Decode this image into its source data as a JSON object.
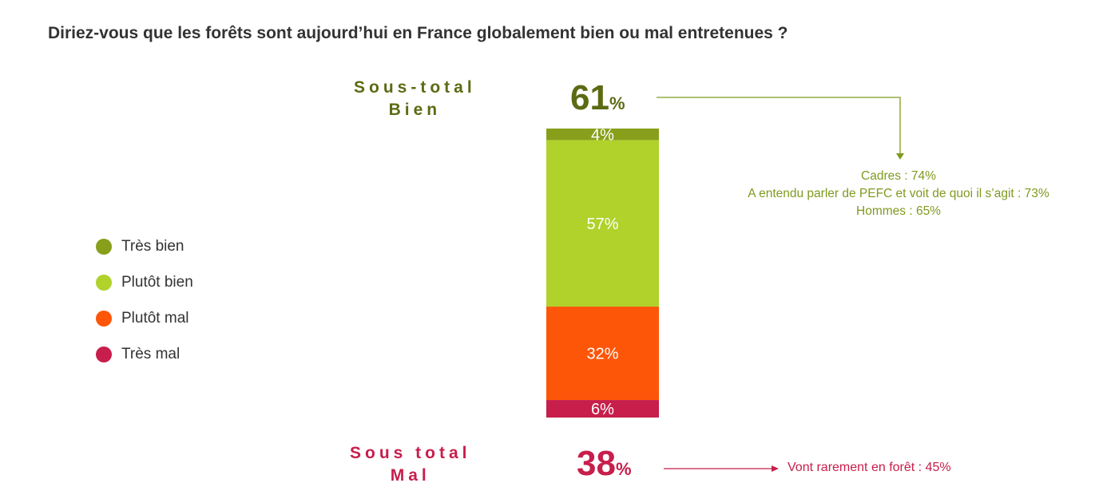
{
  "question": "Diriez-vous que les forêts sont aujourd’hui en France globalement bien ou mal entretenues ?",
  "legend": [
    {
      "label": "Très bien",
      "color": "#889f1c"
    },
    {
      "label": "Plutôt bien",
      "color": "#b0d22a"
    },
    {
      "label": "Plutôt mal",
      "color": "#fd5608"
    },
    {
      "label": "Très mal",
      "color": "#c71e4b"
    }
  ],
  "subtotal_bien": {
    "label_line1": "Sous-total",
    "label_line2": "Bien",
    "value": "61",
    "unit": "%",
    "color": "#5b6b14"
  },
  "subtotal_mal": {
    "label_line1": "Sous total",
    "label_line2": "Mal",
    "value": "38",
    "unit": "%",
    "color": "#c71e4b"
  },
  "annotations_bien": {
    "lines": [
      "Cadres : 74%",
      "A entendu parler de PEFC et voit de quoi il s’agit : 73%",
      "Hommes : 65%"
    ],
    "color": "#7f9a21"
  },
  "annotation_mal": {
    "text": "Vont rarement en forêt : 45%",
    "color": "#c71e4b"
  },
  "chart_data": {
    "type": "bar",
    "stacked": true,
    "categories": [
      ""
    ],
    "series": [
      {
        "name": "Très bien",
        "values": [
          4
        ],
        "label": "4%",
        "color": "#889f1c"
      },
      {
        "name": "Plutôt bien",
        "values": [
          57
        ],
        "label": "57%",
        "color": "#b0d22a"
      },
      {
        "name": "Plutôt mal",
        "values": [
          32
        ],
        "label": "32%",
        "color": "#fd5608"
      },
      {
        "name": "Très mal",
        "values": [
          6
        ],
        "label": "6%",
        "color": "#c71e4b"
      }
    ],
    "ylim": [
      0,
      99
    ]
  }
}
